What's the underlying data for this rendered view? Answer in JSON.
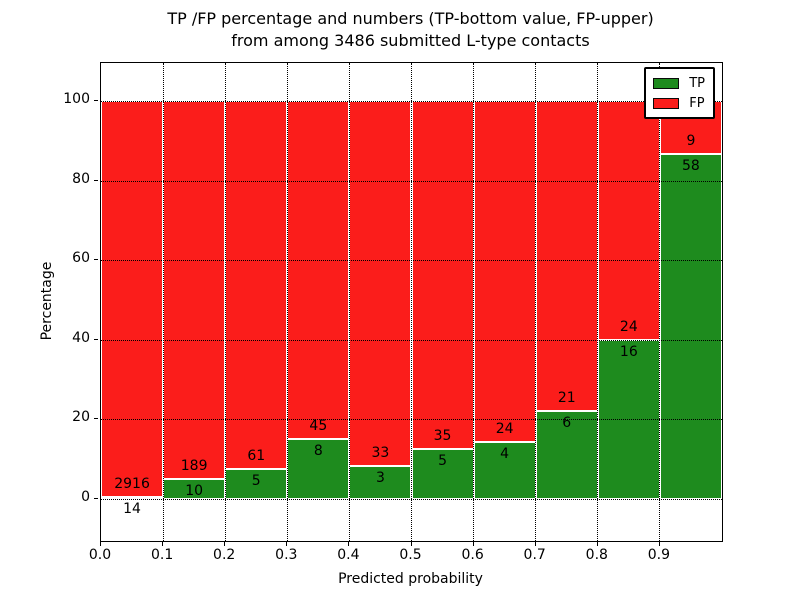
{
  "title": {
    "line1": "TP /FP percentage and numbers (TP-bottom value, FP-upper)",
    "line2": "from among 3486 submitted L-type contacts"
  },
  "axes": {
    "xlabel": "Predicted probability",
    "ylabel": "Percentage",
    "x_tick_labels": [
      "0.0",
      "0.1",
      "0.2",
      "0.3",
      "0.4",
      "0.5",
      "0.6",
      "0.7",
      "0.8",
      "0.9"
    ],
    "y_tick_labels": [
      "0",
      "20",
      "40",
      "60",
      "80",
      "100"
    ],
    "y_tick_values": [
      0,
      20,
      40,
      60,
      80,
      100
    ]
  },
  "legend": {
    "items": [
      {
        "label": "TP",
        "color": "#1e8b1e"
      },
      {
        "label": "FP",
        "color": "#fb1d1b"
      }
    ]
  },
  "colors": {
    "tp": "#1e8b1e",
    "fp": "#fb1d1b",
    "grid": "#000000"
  },
  "chart_data": {
    "type": "bar",
    "subtype": "stacked-percentage",
    "title": "TP /FP percentage and numbers (TP-bottom value, FP-upper) from among 3486 submitted L-type contacts",
    "xlabel": "Predicted probability",
    "ylabel": "Percentage",
    "total_contacts": 3486,
    "bin_edges": [
      0.0,
      0.1,
      0.2,
      0.3,
      0.4,
      0.5,
      0.6,
      0.7,
      0.8,
      0.9,
      1.0
    ],
    "categories": [
      "0.0",
      "0.1",
      "0.2",
      "0.3",
      "0.4",
      "0.5",
      "0.6",
      "0.7",
      "0.8",
      "0.9"
    ],
    "series": [
      {
        "name": "TP",
        "color": "#1e8b1e",
        "values": [
          14,
          10,
          5,
          8,
          3,
          5,
          4,
          6,
          16,
          58
        ]
      },
      {
        "name": "FP",
        "color": "#fb1d1b",
        "values": [
          2916,
          189,
          61,
          45,
          33,
          35,
          24,
          21,
          24,
          9
        ]
      }
    ],
    "ylim": [
      -10.55,
      110.05
    ],
    "xlim": [
      0.0,
      1.0
    ],
    "grid": true,
    "grid_style": "dotted",
    "legend_position": "upper right",
    "bar_total_percent": 100
  }
}
